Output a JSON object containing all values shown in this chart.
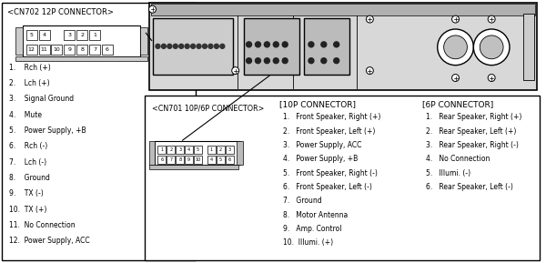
{
  "bg_color": "#ffffff",
  "text_color": "#000000",
  "line_color": "#000000",
  "cn702_title": "<CN702 12P CONNECTOR>",
  "cn702_items": [
    "1.    Rch (+)",
    "2.    Lch (+)",
    "3.    Signal Ground",
    "4.    Mute",
    "5.    Power Supply, +B",
    "6.    Rch (-)",
    "7.    Lch (-)",
    "8.    Ground",
    "9.    TX (-)",
    "10.  TX (+)",
    "11.  No Connection",
    "12.  Power Supply, ACC"
  ],
  "cn701_title": "<CN701 10P/6P CONNECTOR>",
  "connector_10p_title": "[10P CONNECTOR]",
  "connector_10p_items": [
    "1.   Front Speaker, Right (+)",
    "2.   Front Speaker, Left (+)",
    "3.   Power Supply, ACC",
    "4.   Power Supply, +B",
    "5.   Front Speaker, Right (-)",
    "6.   Front Speaker, Left (-)",
    "7.   Ground",
    "8.   Motor Antenna",
    "9.   Amp. Control",
    "10.  Illumi. (+)"
  ],
  "connector_6p_title": "[6P CONNECTOR]",
  "connector_6p_items": [
    "1.   Rear Speaker, Right (+)",
    "2.   Rear Speaker, Left (+)",
    "3.   Rear Speaker, Right (-)",
    "4.   No Connection",
    "5.   Illumi. (-)",
    "6.   Rear Speaker, Left (-)"
  ]
}
